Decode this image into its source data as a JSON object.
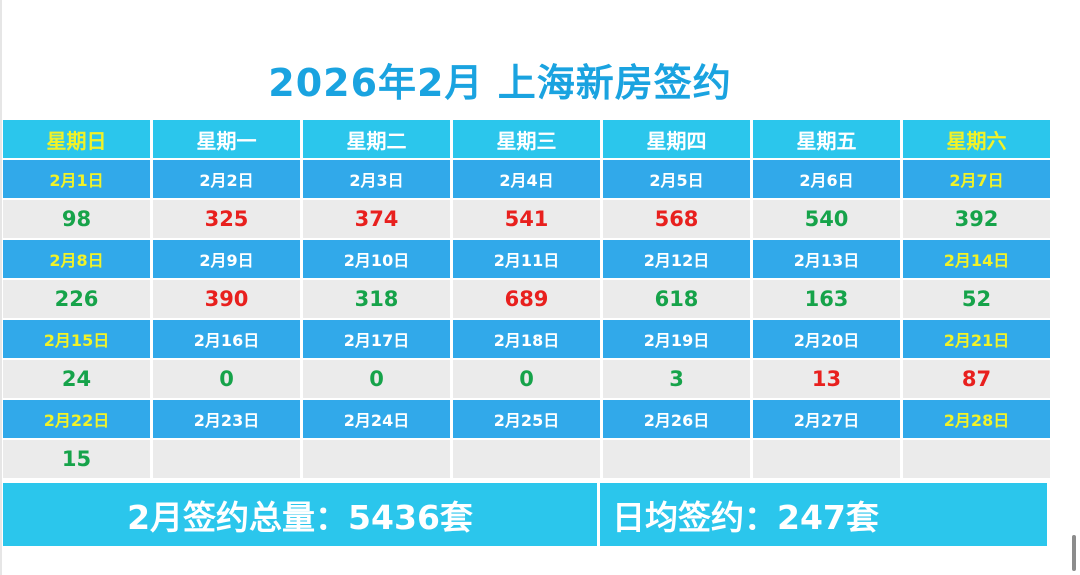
{
  "title": "2026年2月 上海新房签约",
  "weekdays": [
    "星期日",
    "星期一",
    "星期二",
    "星期三",
    "星期四",
    "星期五",
    "星期六"
  ],
  "weeks": [
    {
      "dates": [
        "2月1日",
        "2月2日",
        "2月3日",
        "2月4日",
        "2月5日",
        "2月6日",
        "2月7日"
      ],
      "values": [
        "98",
        "325",
        "374",
        "541",
        "568",
        "540",
        "392"
      ],
      "colors": [
        "#16a34a",
        "#e8201e",
        "#e8201e",
        "#e8201e",
        "#e8201e",
        "#16a34a",
        "#16a34a"
      ]
    },
    {
      "dates": [
        "2月8日",
        "2月9日",
        "2月10日",
        "2月11日",
        "2月12日",
        "2月13日",
        "2月14日"
      ],
      "values": [
        "226",
        "390",
        "318",
        "689",
        "618",
        "163",
        "52"
      ],
      "colors": [
        "#16a34a",
        "#e8201e",
        "#16a34a",
        "#e8201e",
        "#16a34a",
        "#16a34a",
        "#16a34a"
      ]
    },
    {
      "dates": [
        "2月15日",
        "2月16日",
        "2月17日",
        "2月18日",
        "2月19日",
        "2月20日",
        "2月21日"
      ],
      "values": [
        "24",
        "0",
        "0",
        "0",
        "3",
        "13",
        "87"
      ],
      "colors": [
        "#16a34a",
        "#16a34a",
        "#16a34a",
        "#16a34a",
        "#16a34a",
        "#e8201e",
        "#e8201e"
      ]
    },
    {
      "dates": [
        "2月22日",
        "2月23日",
        "2月24日",
        "2月25日",
        "2月26日",
        "2月27日",
        "2月28日"
      ],
      "values": [
        "15",
        "",
        "",
        "",
        "",
        "",
        ""
      ],
      "colors": [
        "#16a34a",
        "",
        "",
        "",
        "",
        "",
        ""
      ]
    }
  ],
  "summary": {
    "total": "2月签约总量：5436套",
    "daily_avg": "日均签约：247套"
  }
}
